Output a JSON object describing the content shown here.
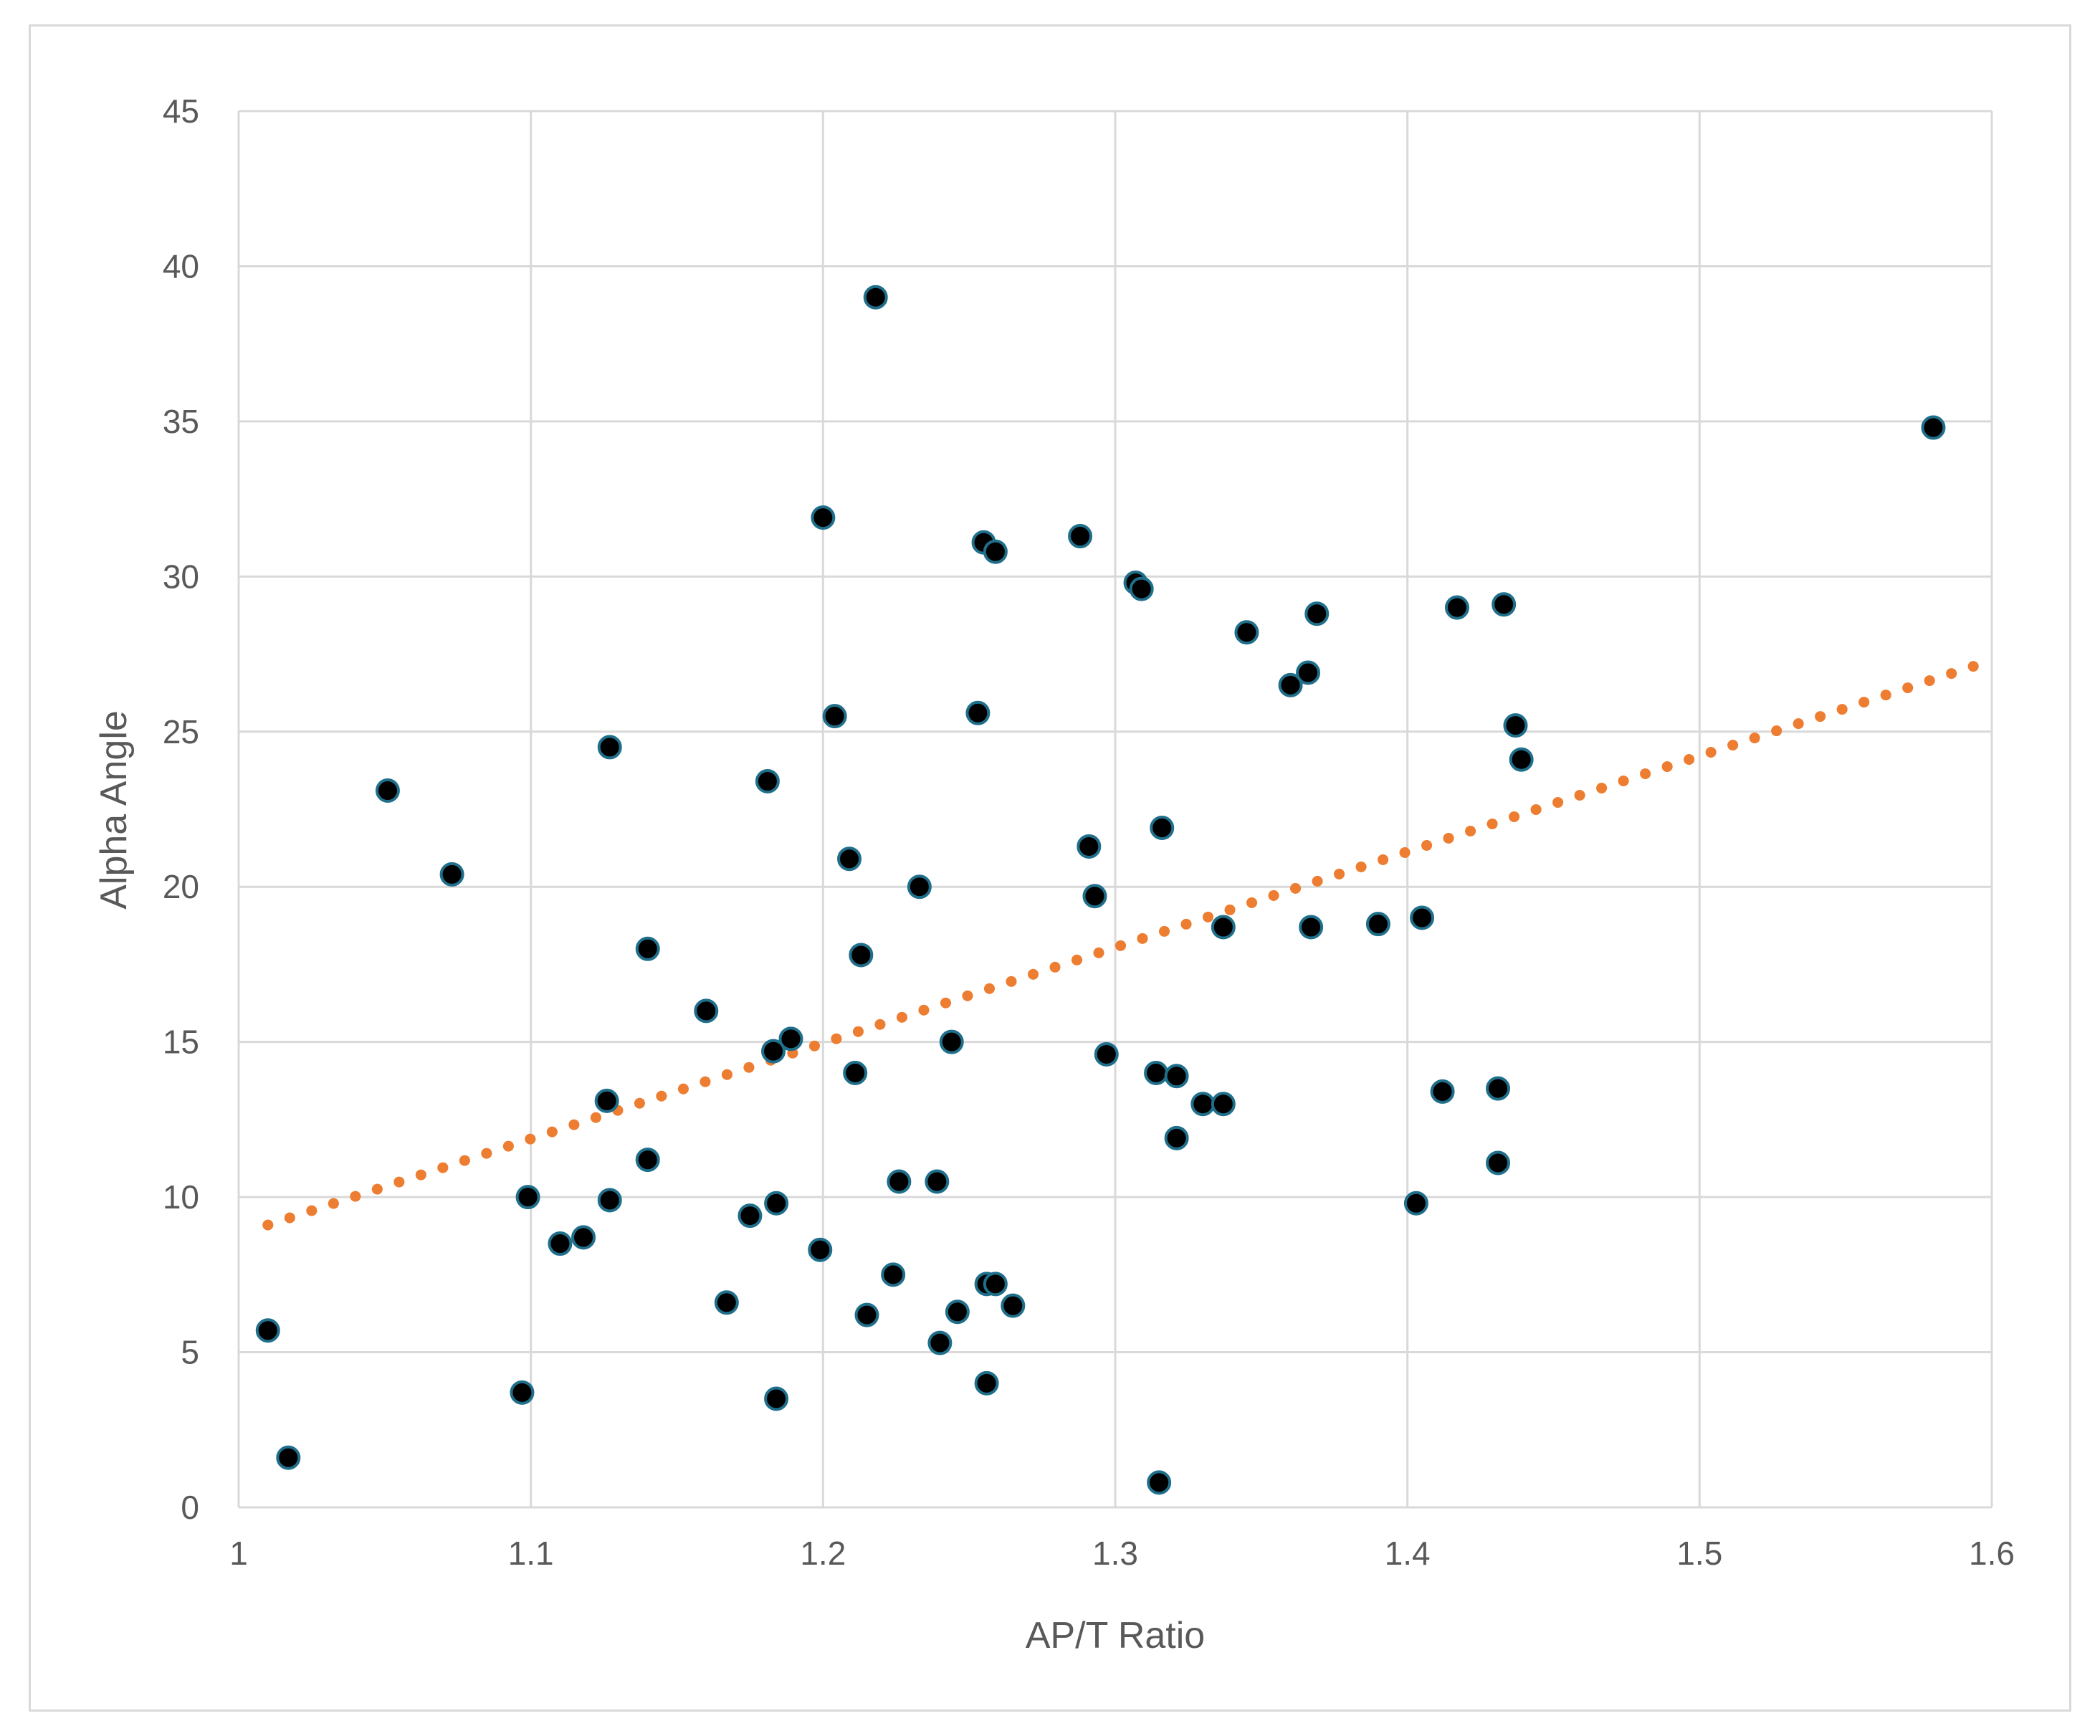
{
  "chart_data": {
    "type": "scatter",
    "title": "",
    "xlabel": "AP/T Ratio",
    "ylabel": "Alpha Angle",
    "xlim": [
      1,
      1.6
    ],
    "ylim": [
      0,
      45
    ],
    "x_ticks": [
      "1",
      "1.1",
      "1.2",
      "1.3",
      "1.4",
      "1.5",
      "1.6"
    ],
    "y_ticks": [
      "0",
      "5",
      "10",
      "15",
      "20",
      "25",
      "30",
      "35",
      "40",
      "45"
    ],
    "grid": true,
    "legend": "none",
    "colors": {
      "points": "#000000",
      "point_outline": "#1f6f8b",
      "trendline": "#ed7d31",
      "grid": "#d9d9d9",
      "text": "#595959"
    },
    "series": [
      {
        "points": [
          [
            1.01,
            5.7
          ],
          [
            1.017,
            1.6
          ],
          [
            1.051,
            23.1
          ],
          [
            1.073,
            20.4
          ],
          [
            1.097,
            3.7
          ],
          [
            1.099,
            10.0
          ],
          [
            1.11,
            8.5
          ],
          [
            1.118,
            8.7
          ],
          [
            1.126,
            13.1
          ],
          [
            1.127,
            24.5
          ],
          [
            1.127,
            9.9
          ],
          [
            1.14,
            18.0
          ],
          [
            1.14,
            11.2
          ],
          [
            1.16,
            16.0
          ],
          [
            1.167,
            6.6
          ],
          [
            1.175,
            9.4
          ],
          [
            1.181,
            23.4
          ],
          [
            1.183,
            14.7
          ],
          [
            1.184,
            9.8
          ],
          [
            1.184,
            3.5
          ],
          [
            1.189,
            15.1
          ],
          [
            1.199,
            8.3
          ],
          [
            1.2,
            31.9
          ],
          [
            1.204,
            25.5
          ],
          [
            1.209,
            20.9
          ],
          [
            1.211,
            14.0
          ],
          [
            1.213,
            17.8
          ],
          [
            1.215,
            6.2
          ],
          [
            1.218,
            39.0
          ],
          [
            1.224,
            7.5
          ],
          [
            1.226,
            10.5
          ],
          [
            1.233,
            20.0
          ],
          [
            1.239,
            10.5
          ],
          [
            1.24,
            5.3
          ],
          [
            1.244,
            15.0
          ],
          [
            1.246,
            6.3
          ],
          [
            1.253,
            25.6
          ],
          [
            1.255,
            31.1
          ],
          [
            1.256,
            7.2
          ],
          [
            1.256,
            4.0
          ],
          [
            1.259,
            30.8
          ],
          [
            1.259,
            7.2
          ],
          [
            1.265,
            6.5
          ],
          [
            1.288,
            31.3
          ],
          [
            1.291,
            21.3
          ],
          [
            1.293,
            19.7
          ],
          [
            1.297,
            14.6
          ],
          [
            1.307,
            29.8
          ],
          [
            1.309,
            29.6
          ],
          [
            1.314,
            14.0
          ],
          [
            1.315,
            0.8
          ],
          [
            1.316,
            21.9
          ],
          [
            1.321,
            13.9
          ],
          [
            1.321,
            11.9
          ],
          [
            1.33,
            13.0
          ],
          [
            1.337,
            13.0
          ],
          [
            1.337,
            18.7
          ],
          [
            1.345,
            28.2
          ],
          [
            1.36,
            26.5
          ],
          [
            1.366,
            26.9
          ],
          [
            1.367,
            18.7
          ],
          [
            1.369,
            28.8
          ],
          [
            1.39,
            18.8
          ],
          [
            1.403,
            9.8
          ],
          [
            1.405,
            19.0
          ],
          [
            1.412,
            13.4
          ],
          [
            1.417,
            29.0
          ],
          [
            1.431,
            11.1
          ],
          [
            1.431,
            13.5
          ],
          [
            1.433,
            29.1
          ],
          [
            1.437,
            25.2
          ],
          [
            1.439,
            24.1
          ],
          [
            1.58,
            34.8
          ]
        ]
      }
    ],
    "trendline": {
      "style": "dotted",
      "x": [
        1.01,
        1.6
      ],
      "y": [
        9.1,
        27.3
      ]
    }
  }
}
